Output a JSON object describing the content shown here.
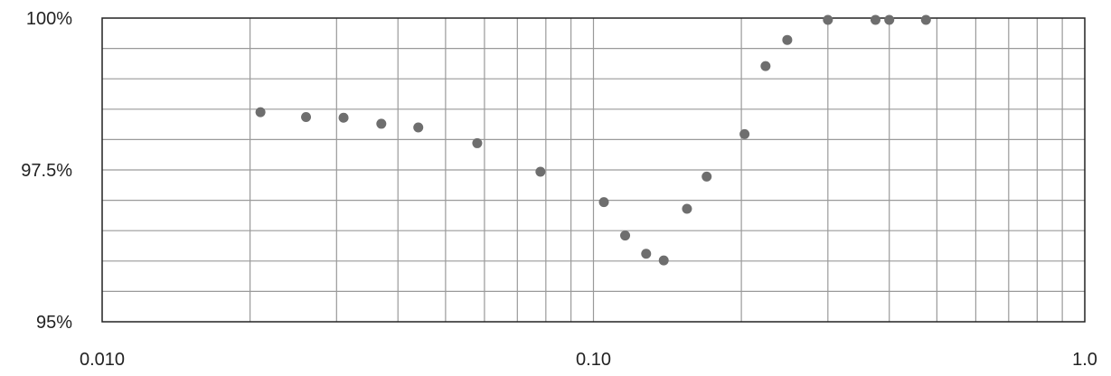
{
  "chart_data": {
    "type": "scatter",
    "title": "",
    "xlabel": "",
    "ylabel": "",
    "x_scale": "log",
    "y_scale": "linear",
    "xlim": [
      0.01,
      1.0
    ],
    "ylim": [
      95,
      100
    ],
    "grid": true,
    "x_ticks": [
      {
        "value": 0.01,
        "label": "0.010"
      },
      {
        "value": 0.1,
        "label": "0.10"
      },
      {
        "value": 1.0,
        "label": "1.0"
      }
    ],
    "y_ticks": [
      {
        "value": 100,
        "label": "100%"
      },
      {
        "value": 97.5,
        "label": "97.5%"
      },
      {
        "value": 95,
        "label": "95%"
      }
    ],
    "marker_color": "#6e6e6e",
    "grid_color": "#9a9a9a",
    "axis_color": "#222222",
    "series": [
      {
        "points": [
          {
            "x": 0.021,
            "y": 98.45
          },
          {
            "x": 0.026,
            "y": 98.37
          },
          {
            "x": 0.031,
            "y": 98.36
          },
          {
            "x": 0.037,
            "y": 98.26
          },
          {
            "x": 0.044,
            "y": 98.2
          },
          {
            "x": 0.058,
            "y": 97.94
          },
          {
            "x": 0.078,
            "y": 97.47
          },
          {
            "x": 0.105,
            "y": 96.97
          },
          {
            "x": 0.116,
            "y": 96.42
          },
          {
            "x": 0.128,
            "y": 96.12
          },
          {
            "x": 0.139,
            "y": 96.01
          },
          {
            "x": 0.155,
            "y": 96.86
          },
          {
            "x": 0.17,
            "y": 97.39
          },
          {
            "x": 0.203,
            "y": 98.09
          },
          {
            "x": 0.224,
            "y": 99.21
          },
          {
            "x": 0.248,
            "y": 99.64
          },
          {
            "x": 0.3,
            "y": 99.97
          },
          {
            "x": 0.375,
            "y": 99.97
          },
          {
            "x": 0.4,
            "y": 99.97
          },
          {
            "x": 0.475,
            "y": 99.97
          }
        ]
      }
    ]
  }
}
